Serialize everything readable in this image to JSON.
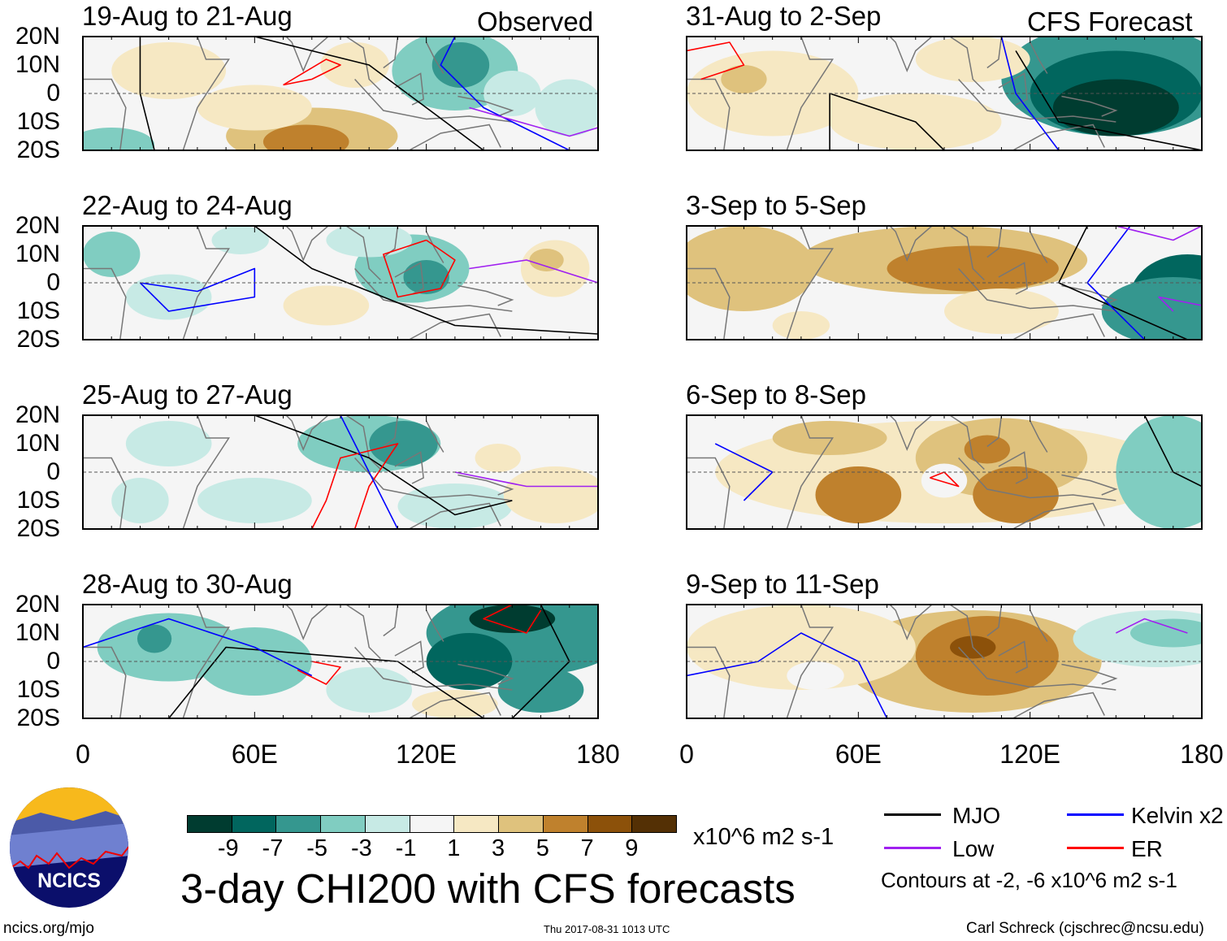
{
  "title": "3-day CHI200 with CFS forecasts",
  "left_column_label": "Observed",
  "right_column_label": "CFS Forecast",
  "panels_left": [
    "19-Aug to 21-Aug",
    "22-Aug to 24-Aug",
    "25-Aug to 27-Aug",
    "28-Aug to 30-Aug"
  ],
  "panels_right": [
    "31-Aug to 2-Sep",
    "3-Sep to 5-Sep",
    "6-Sep to 8-Sep",
    "9-Sep to 11-Sep"
  ],
  "y_ticks": [
    "20N",
    "10N",
    "0",
    "10S",
    "20S"
  ],
  "x_ticks": [
    "0",
    "60E",
    "120E",
    "180"
  ],
  "colorbar": {
    "colors": [
      "#003c30",
      "#01665e",
      "#35978f",
      "#80cdc1",
      "#c7eae5",
      "#f5f5f5",
      "#f6e8c3",
      "#dfc27d",
      "#bf812d",
      "#8c510a",
      "#543005"
    ],
    "labels": [
      "-9",
      "-7",
      "-5",
      "-3",
      "-1",
      "1",
      "3",
      "5",
      "7",
      "9"
    ],
    "units": "x10^6 m2 s-1"
  },
  "legend": {
    "items": [
      {
        "label": "MJO",
        "color": "#000000"
      },
      {
        "label": "Kelvin x2",
        "color": "#0000ff"
      },
      {
        "label": "Low",
        "color": "#a020f0"
      },
      {
        "label": "ER",
        "color": "#ff0000"
      }
    ],
    "note": "Contours at -2, -6 x10^6 m2 s-1"
  },
  "logo": {
    "text": "NCICS"
  },
  "footer": {
    "url": "ncics.org/mjo",
    "timestamp": "Thu 2017-08-31 1013 UTC",
    "author": "Carl Schreck (cjschrec@ncsu.edu)"
  }
}
